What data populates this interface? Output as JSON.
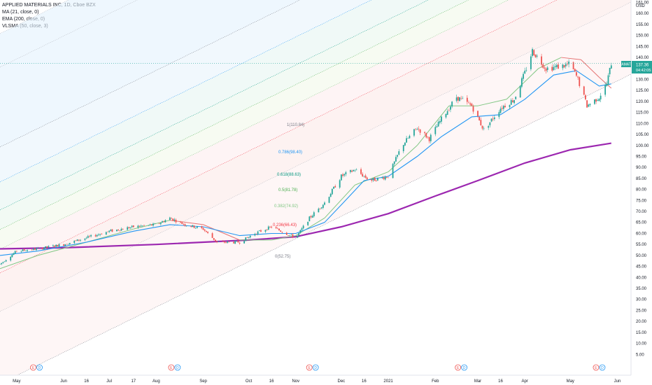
{
  "legend": {
    "title": "APPLIED MATERIALS INC, 1D, Cboe BZX",
    "ma": "MA (21, close, 0)",
    "ema": "EMA (200, close, 0)",
    "vlsma": "VLSMA (50, close, 3)"
  },
  "price_badge": {
    "symbol": "AMAT",
    "price": "137.36",
    "time": "04:42:05"
  },
  "colors": {
    "ma": "#2196f3",
    "ema": "#9c27b0",
    "vlsma_up": "#81c784",
    "vlsma_down": "#e57373",
    "up": "#26a69a",
    "down": "#ef5350",
    "badge": "#26a69a"
  },
  "fib_labels": [
    {
      "text": "1(110.84)",
      "color": "#787b86"
    },
    {
      "text": "0.786(98.40)",
      "color": "#2196f3"
    },
    {
      "text": "0.618(88.63)",
      "color": "#089981"
    },
    {
      "text": "0.5(81.78)",
      "color": "#4caf50"
    },
    {
      "text": "0.382(74.92)",
      "color": "#81c784"
    },
    {
      "text": "0.236(66.43)",
      "color": "#f23645"
    },
    {
      "text": "0(52.75)",
      "color": "#787b86"
    }
  ],
  "events": [
    {
      "date": "2020-05-14",
      "labels": [
        "E",
        "D"
      ]
    },
    {
      "date": "2020-08-13",
      "labels": [
        "E",
        "D"
      ]
    },
    {
      "date": "2020-11-12",
      "labels": [
        "E",
        "D"
      ]
    },
    {
      "date": "2021-02-18",
      "labels": [
        "E",
        "D"
      ]
    },
    {
      "date": "2021-05-20",
      "labels": [
        "E",
        "D"
      ]
    }
  ],
  "chart_data": {
    "type": "candlestick",
    "title": "APPLIED MATERIALS INC, 1D, Cboe BZX",
    "y_axis": {
      "unit": "USD",
      "ticks": [
        161.0,
        160.0,
        155.0,
        150.0,
        145.0,
        140.0,
        135.0,
        130.0,
        125.0,
        120.0,
        115.0,
        110.0,
        105.0,
        100.0,
        95.0,
        90.0,
        85.0,
        80.0,
        75.0,
        70.0,
        65.0,
        60.0,
        55.0,
        50.0,
        45.0,
        40.0,
        35.0,
        30.0,
        25.0,
        20.0,
        15.0,
        10.0,
        5.0
      ],
      "tick_labels": [
        "161.00",
        "160.00",
        "155.00",
        "150.00",
        "145.00",
        "140.00",
        "135.00",
        "130.00",
        "125.00",
        "120.00",
        "115.00",
        "110.00",
        "105.00",
        "100.00",
        "95.00",
        "90.00",
        "85.00",
        "80.00",
        "75.00",
        "70.00",
        "65.00",
        "60.00",
        "55.00",
        "50.00",
        "45.00",
        "40.00",
        "35.00",
        "30.00",
        "25.00",
        "20.00",
        "15.00",
        "10.00",
        "5.00"
      ],
      "range": [
        0,
        165
      ]
    },
    "x_axis": {
      "range": [
        "2020-04-20",
        "2021-06-10"
      ],
      "ticks": [
        {
          "label": "May",
          "date": "2020-05-01"
        },
        {
          "label": "Jun",
          "date": "2020-06-01"
        },
        {
          "label": "16",
          "date": "2020-06-16"
        },
        {
          "label": "Jul",
          "date": "2020-07-01"
        },
        {
          "label": "17",
          "date": "2020-07-17"
        },
        {
          "label": "Aug",
          "date": "2020-08-01"
        },
        {
          "label": "Sep",
          "date": "2020-09-01"
        },
        {
          "label": "Oct",
          "date": "2020-10-01"
        },
        {
          "label": "16",
          "date": "2020-10-16"
        },
        {
          "label": "Nov",
          "date": "2020-11-01"
        },
        {
          "label": "Dec",
          "date": "2020-12-01"
        },
        {
          "label": "16",
          "date": "2020-12-16"
        },
        {
          "label": "2021",
          "date": "2021-01-01"
        },
        {
          "label": "Feb",
          "date": "2021-02-01"
        },
        {
          "label": "Mar",
          "date": "2021-03-01"
        },
        {
          "label": "16",
          "date": "2021-03-16"
        },
        {
          "label": "Apr",
          "date": "2021-04-01"
        },
        {
          "label": "May",
          "date": "2021-05-01"
        },
        {
          "label": "Jun",
          "date": "2021-06-01"
        }
      ]
    },
    "close_path": [
      [
        "2020-04-20",
        46
      ],
      [
        "2020-05-01",
        52
      ],
      [
        "2020-05-15",
        53
      ],
      [
        "2020-06-01",
        55
      ],
      [
        "2020-06-16",
        58
      ],
      [
        "2020-07-01",
        61
      ],
      [
        "2020-07-17",
        63
      ],
      [
        "2020-08-01",
        64
      ],
      [
        "2020-08-10",
        67
      ],
      [
        "2020-08-20",
        64
      ],
      [
        "2020-09-01",
        62
      ],
      [
        "2020-09-10",
        56
      ],
      [
        "2020-09-25",
        56
      ],
      [
        "2020-10-05",
        60
      ],
      [
        "2020-10-16",
        63
      ],
      [
        "2020-11-01",
        58
      ],
      [
        "2020-11-10",
        67
      ],
      [
        "2020-11-20",
        74
      ],
      [
        "2020-12-01",
        86
      ],
      [
        "2020-12-10",
        89
      ],
      [
        "2020-12-20",
        84
      ],
      [
        "2021-01-01",
        86
      ],
      [
        "2021-01-10",
        100
      ],
      [
        "2021-01-20",
        108
      ],
      [
        "2021-01-28",
        103
      ],
      [
        "2021-02-05",
        112
      ],
      [
        "2021-02-15",
        122
      ],
      [
        "2021-02-25",
        118
      ],
      [
        "2021-03-05",
        107
      ],
      [
        "2021-03-16",
        117
      ],
      [
        "2021-03-25",
        121
      ],
      [
        "2021-04-01",
        133
      ],
      [
        "2021-04-06",
        143
      ],
      [
        "2021-04-15",
        135
      ],
      [
        "2021-04-25",
        136
      ],
      [
        "2021-05-01",
        137
      ],
      [
        "2021-05-06",
        130
      ],
      [
        "2021-05-12",
        118
      ],
      [
        "2021-05-20",
        122
      ],
      [
        "2021-05-25",
        128
      ],
      [
        "2021-05-28",
        137.36
      ]
    ],
    "series": [
      {
        "name": "MA (21, close, 0)",
        "type": "line",
        "points": [
          [
            "2020-04-20",
            50
          ],
          [
            "2020-05-15",
            52
          ],
          [
            "2020-06-16",
            56
          ],
          [
            "2020-07-17",
            61
          ],
          [
            "2020-08-10",
            64
          ],
          [
            "2020-09-01",
            63
          ],
          [
            "2020-09-25",
            59
          ],
          [
            "2020-10-16",
            60
          ],
          [
            "2020-11-01",
            60
          ],
          [
            "2020-11-20",
            65
          ],
          [
            "2020-12-01",
            73
          ],
          [
            "2020-12-16",
            84
          ],
          [
            "2021-01-01",
            86
          ],
          [
            "2021-01-20",
            95
          ],
          [
            "2021-02-05",
            104
          ],
          [
            "2021-02-25",
            113
          ],
          [
            "2021-03-16",
            114
          ],
          [
            "2021-04-01",
            121
          ],
          [
            "2021-04-20",
            132
          ],
          [
            "2021-05-05",
            134
          ],
          [
            "2021-05-20",
            127
          ],
          [
            "2021-05-28",
            128
          ]
        ]
      },
      {
        "name": "EMA (200, close, 0)",
        "type": "line",
        "points": [
          [
            "2020-04-20",
            53
          ],
          [
            "2020-06-01",
            53.5
          ],
          [
            "2020-08-01",
            55
          ],
          [
            "2020-10-01",
            57
          ],
          [
            "2020-11-01",
            58.5
          ],
          [
            "2020-12-01",
            63
          ],
          [
            "2021-01-01",
            69
          ],
          [
            "2021-02-01",
            77
          ],
          [
            "2021-03-01",
            84
          ],
          [
            "2021-04-01",
            92
          ],
          [
            "2021-05-01",
            98
          ],
          [
            "2021-05-28",
            101
          ]
        ]
      },
      {
        "name": "VLSMA (50, close, 3)",
        "type": "line",
        "points": [
          [
            "2020-04-20",
            44
          ],
          [
            "2020-05-15",
            50
          ],
          [
            "2020-06-16",
            56
          ],
          [
            "2020-07-17",
            62
          ],
          [
            "2020-08-10",
            66
          ],
          [
            "2020-09-01",
            64
          ],
          [
            "2020-09-25",
            57
          ],
          [
            "2020-10-16",
            57
          ],
          [
            "2020-11-01",
            59
          ],
          [
            "2020-11-20",
            67
          ],
          [
            "2020-12-10",
            82
          ],
          [
            "2021-01-01",
            88
          ],
          [
            "2021-01-20",
            100
          ],
          [
            "2021-02-10",
            118
          ],
          [
            "2021-03-01",
            118
          ],
          [
            "2021-03-20",
            121
          ],
          [
            "2021-04-10",
            135
          ],
          [
            "2021-04-25",
            140
          ],
          [
            "2021-05-08",
            139
          ],
          [
            "2021-05-20",
            131
          ],
          [
            "2021-05-28",
            126
          ]
        ]
      }
    ],
    "fibonacci_channel": {
      "levels": [
        1,
        0.786,
        0.618,
        0.5,
        0.382,
        0.236,
        0
      ],
      "values": [
        110.84,
        98.4,
        88.63,
        81.78,
        74.92,
        66.43,
        52.75
      ]
    },
    "last_price": 137.36,
    "grid": false,
    "legend_position": "top-left"
  }
}
